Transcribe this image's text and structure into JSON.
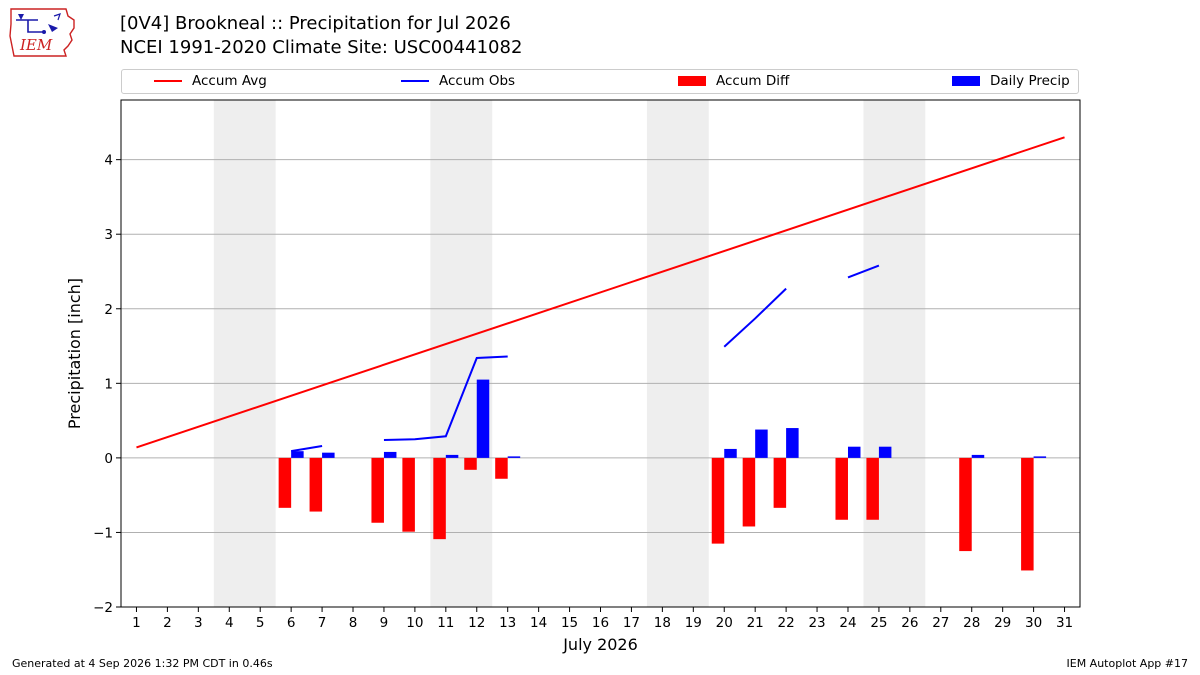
{
  "header": {
    "title_line1": "[0V4] Brookneal :: Precipitation for Jul 2026",
    "title_line2": "NCEI 1991-2020 Climate Site: USC00441082"
  },
  "logo": {
    "text": "IEM",
    "icon": "iem-iowa-logo"
  },
  "footer": {
    "left": "Generated at 4 Sep 2026 1:32 PM CDT in 0.46s",
    "right": "IEM Autoplot App #17"
  },
  "chart_data": {
    "type": "bar",
    "xlabel": "July 2026",
    "ylabel": "Precipitation [inch]",
    "ylim": [
      -2.0,
      4.8
    ],
    "xlim": [
      0.5,
      31.5
    ],
    "yticks": [
      -2,
      -1,
      0,
      1,
      2,
      3,
      4
    ],
    "ytick_labels": [
      "−2",
      "−1",
      "0",
      "1",
      "2",
      "3",
      "4"
    ],
    "days": [
      1,
      2,
      3,
      4,
      5,
      6,
      7,
      8,
      9,
      10,
      11,
      12,
      13,
      14,
      15,
      16,
      17,
      18,
      19,
      20,
      21,
      22,
      23,
      24,
      25,
      26,
      27,
      28,
      29,
      30,
      31
    ],
    "grid": "horizontal",
    "weekend_shading": [
      [
        3.5,
        5.5
      ],
      [
        10.5,
        12.5
      ],
      [
        17.5,
        19.5
      ],
      [
        24.5,
        26.5
      ]
    ],
    "legend": {
      "placement": "top",
      "entries": [
        {
          "label": "Accum Avg",
          "kind": "line",
          "color": "#ff0000"
        },
        {
          "label": "Accum Obs",
          "kind": "line",
          "color": "#0000ff"
        },
        {
          "label": "Accum Diff",
          "kind": "bar",
          "color": "#ff0000"
        },
        {
          "label": "Daily Precip",
          "kind": "bar",
          "color": "#0000ff"
        }
      ]
    },
    "series": [
      {
        "name": "Accum Avg",
        "kind": "line",
        "color": "#ff0000",
        "x": [
          1,
          31
        ],
        "y": [
          0.14,
          4.3
        ]
      },
      {
        "name": "Accum Obs",
        "kind": "line",
        "color": "#0000ff",
        "segments": [
          {
            "x": [
              6,
              7
            ],
            "y": [
              0.09,
              0.16
            ]
          },
          {
            "x": [
              9,
              10,
              11,
              12,
              13
            ],
            "y": [
              0.24,
              0.25,
              0.29,
              1.34,
              1.36
            ]
          },
          {
            "x": [
              20,
              21,
              22
            ],
            "y": [
              1.49,
              1.87,
              2.27
            ]
          },
          {
            "x": [
              24,
              25
            ],
            "y": [
              2.42,
              2.58
            ]
          }
        ]
      },
      {
        "name": "Accum Diff",
        "kind": "bar",
        "color": "#ff0000",
        "x": [
          6,
          7,
          9,
          10,
          11,
          12,
          13,
          20,
          21,
          22,
          24,
          25,
          28,
          30
        ],
        "values": [
          -0.67,
          -0.72,
          -0.87,
          -0.99,
          -1.09,
          -0.16,
          -0.28,
          -1.15,
          -0.92,
          -0.67,
          -0.83,
          -0.83,
          -1.25,
          -1.51
        ]
      },
      {
        "name": "Daily Precip",
        "kind": "bar",
        "color": "#0000ff",
        "x": [
          6,
          7,
          9,
          11,
          12,
          13,
          20,
          21,
          22,
          24,
          25,
          28,
          30
        ],
        "values": [
          0.09,
          0.07,
          0.08,
          0.04,
          1.05,
          0.02,
          0.12,
          0.38,
          0.4,
          0.15,
          0.15,
          0.04,
          0.02
        ]
      }
    ]
  }
}
